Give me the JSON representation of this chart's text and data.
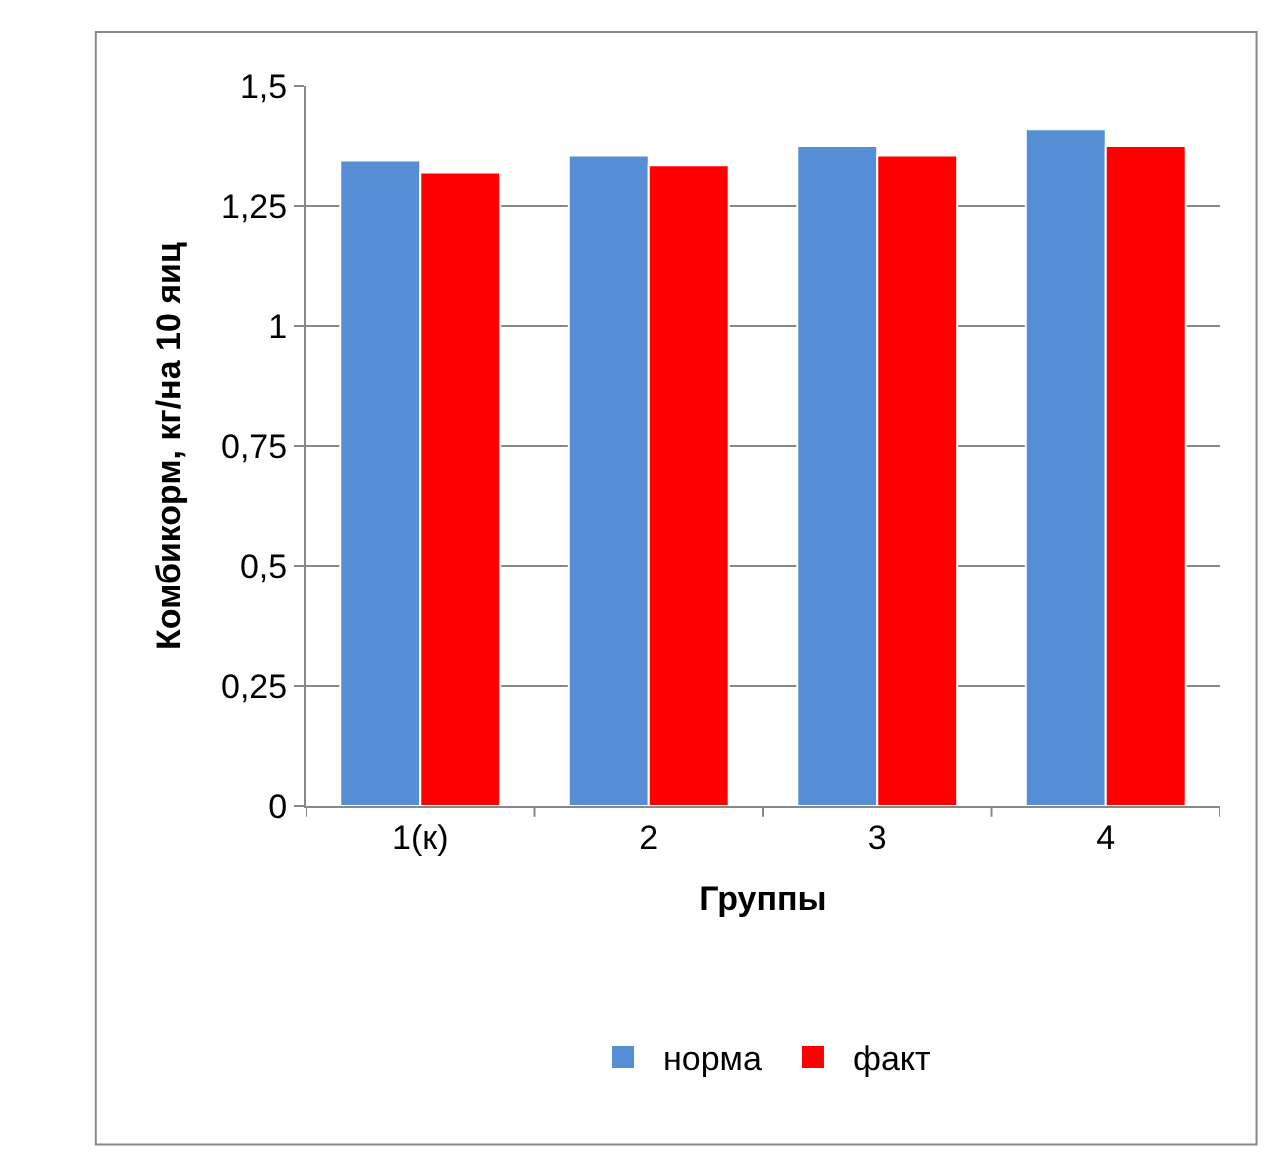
{
  "chart_data": {
    "type": "bar",
    "xlabel": "Группы",
    "ylabel": "Комбикорм, кг/на 10 яиц",
    "categories": [
      "1(к)",
      "2",
      "3",
      "4"
    ],
    "series": [
      {
        "name": "норма",
        "color": "#558ed5",
        "values": [
          1.345,
          1.355,
          1.375,
          1.41
        ]
      },
      {
        "name": "факт",
        "color": "#ff0000",
        "values": [
          1.32,
          1.335,
          1.355,
          1.375
        ]
      }
    ],
    "ylim": [
      0,
      1.5
    ],
    "yticks": [
      0,
      {
        "value": 0.25,
        "label": "0,25"
      },
      {
        "value": 0.5,
        "label": "0,5"
      },
      {
        "value": 0.75,
        "label": "0,75"
      },
      1,
      {
        "value": 1.25,
        "label": "1,25"
      },
      {
        "value": 1.5,
        "label": "1,5"
      }
    ],
    "grid": "y",
    "legend": "bottom"
  }
}
